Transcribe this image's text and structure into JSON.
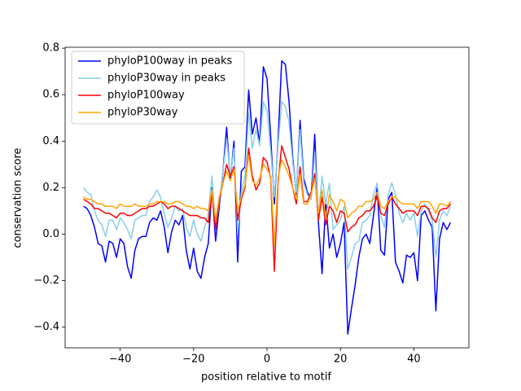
{
  "chart_data": {
    "type": "line",
    "xlabel": "position relative to motif",
    "ylabel": "conservation score",
    "x": [
      -50,
      -49,
      -48,
      -47,
      -46,
      -45,
      -44,
      -43,
      -42,
      -41,
      -40,
      -39,
      -38,
      -37,
      -36,
      -35,
      -34,
      -33,
      -32,
      -31,
      -30,
      -29,
      -28,
      -27,
      -26,
      -25,
      -24,
      -23,
      -22,
      -21,
      -20,
      -19,
      -18,
      -17,
      -16,
      -15,
      -14,
      -13,
      -12,
      -11,
      -10,
      -9,
      -8,
      -7,
      -6,
      -5,
      -4,
      -3,
      -2,
      -1,
      0,
      1,
      2,
      3,
      4,
      5,
      6,
      7,
      8,
      9,
      10,
      11,
      12,
      13,
      14,
      15,
      16,
      17,
      18,
      19,
      20,
      21,
      22,
      23,
      24,
      25,
      26,
      27,
      28,
      29,
      30,
      31,
      32,
      33,
      34,
      35,
      36,
      37,
      38,
      39,
      40,
      41,
      42,
      43,
      44,
      45,
      46,
      47,
      48,
      49,
      50
    ],
    "series": [
      {
        "name": "phyloP100way in peaks",
        "color": "#0000ff",
        "values": [
          0.12,
          0.11,
          0.08,
          0.03,
          -0.04,
          -0.05,
          -0.12,
          -0.03,
          -0.04,
          -0.1,
          -0.02,
          -0.04,
          -0.14,
          -0.19,
          -0.07,
          -0.02,
          -0.01,
          -0.01,
          0.05,
          0.07,
          0.06,
          0.1,
          0.03,
          -0.08,
          0.01,
          0.06,
          0.04,
          0.08,
          -0.07,
          -0.15,
          -0.06,
          -0.16,
          -0.19,
          -0.1,
          -0.04,
          0.2,
          -0.03,
          0.12,
          0.27,
          0.46,
          0.23,
          0.4,
          -0.12,
          0.27,
          0.29,
          0.62,
          0.43,
          0.5,
          0.39,
          0.72,
          0.67,
          0.42,
          0.13,
          0.4,
          0.745,
          0.73,
          0.57,
          0.33,
          0.17,
          0.49,
          0.24,
          0.18,
          0.15,
          0.43,
          0.05,
          -0.17,
          0.14,
          -0.06,
          0.0,
          -0.1,
          -0.04,
          0.05,
          -0.43,
          -0.32,
          -0.22,
          -0.1,
          -0.02,
          0.0,
          -0.04,
          0.08,
          0.2,
          -0.07,
          -0.09,
          0.15,
          0.18,
          -0.12,
          -0.16,
          -0.21,
          -0.09,
          -0.1,
          -0.08,
          -0.2,
          0.08,
          0.1,
          0.06,
          0.03,
          -0.33,
          -0.02,
          0.05,
          0.02,
          0.05
        ]
      },
      {
        "name": "phyloP30way in peaks",
        "color": "#87ceeb",
        "values": [
          0.2,
          0.18,
          0.17,
          0.1,
          0.06,
          0.04,
          -0.01,
          0.06,
          0.06,
          0.02,
          0.07,
          0.05,
          0.02,
          -0.02,
          0.06,
          0.07,
          0.08,
          0.08,
          0.14,
          0.16,
          0.19,
          0.16,
          0.09,
          0.03,
          0.07,
          0.12,
          0.1,
          0.11,
          0.03,
          -0.01,
          0.06,
          0.0,
          -0.03,
          0.03,
          0.09,
          0.25,
          0.02,
          0.14,
          0.27,
          0.41,
          0.25,
          0.37,
          0.0,
          0.18,
          0.25,
          0.52,
          0.37,
          0.45,
          0.38,
          0.57,
          0.53,
          0.36,
          0.16,
          0.38,
          0.57,
          0.55,
          0.48,
          0.31,
          0.18,
          0.45,
          0.22,
          0.17,
          0.15,
          0.35,
          0.08,
          0.25,
          0.13,
          0.22,
          0.02,
          0.04,
          0.06,
          0.12,
          -0.15,
          -0.1,
          -0.04,
          -0.03,
          0.05,
          0.06,
          0.08,
          0.17,
          0.22,
          0.08,
          0.03,
          0.17,
          0.22,
          0.17,
          0.09,
          0.05,
          0.09,
          0.06,
          0.09,
          -0.01,
          0.1,
          0.13,
          0.1,
          0.06,
          -0.1,
          0.06,
          0.1,
          0.08,
          0.12
        ]
      },
      {
        "name": "phyloP100way",
        "color": "#ff0000",
        "values": [
          0.15,
          0.14,
          0.13,
          0.11,
          0.11,
          0.1,
          0.09,
          0.09,
          0.08,
          0.07,
          0.09,
          0.09,
          0.08,
          0.08,
          0.09,
          0.1,
          0.11,
          0.11,
          0.12,
          0.12,
          0.13,
          0.14,
          0.13,
          0.11,
          0.12,
          0.12,
          0.11,
          0.1,
          0.09,
          0.08,
          0.08,
          0.08,
          0.07,
          0.07,
          0.05,
          0.18,
          0.02,
          0.15,
          0.22,
          0.3,
          0.25,
          0.29,
          0.06,
          0.15,
          0.2,
          0.37,
          0.25,
          0.19,
          0.22,
          0.33,
          0.31,
          0.24,
          -0.16,
          0.22,
          0.38,
          0.33,
          0.28,
          0.2,
          0.13,
          0.29,
          0.14,
          0.14,
          0.18,
          0.26,
          0.06,
          0.16,
          0.04,
          0.12,
          0.1,
          0.05,
          0.1,
          0.09,
          0.01,
          0.03,
          0.04,
          0.07,
          0.08,
          0.1,
          0.1,
          0.12,
          0.16,
          0.09,
          0.08,
          0.13,
          0.16,
          0.13,
          0.11,
          0.09,
          0.1,
          0.1,
          0.1,
          0.08,
          0.12,
          0.12,
          0.11,
          0.07,
          0.05,
          0.1,
          0.11,
          0.11,
          0.13
        ]
      },
      {
        "name": "phyloP30way",
        "color": "#ffa500",
        "values": [
          0.16,
          0.15,
          0.15,
          0.14,
          0.13,
          0.13,
          0.12,
          0.12,
          0.12,
          0.11,
          0.13,
          0.12,
          0.12,
          0.12,
          0.13,
          0.12,
          0.12,
          0.12,
          0.13,
          0.13,
          0.14,
          0.14,
          0.14,
          0.13,
          0.13,
          0.14,
          0.14,
          0.13,
          0.12,
          0.12,
          0.11,
          0.12,
          0.11,
          0.11,
          0.1,
          0.19,
          0.06,
          0.16,
          0.22,
          0.27,
          0.23,
          0.28,
          0.1,
          0.16,
          0.21,
          0.34,
          0.23,
          0.21,
          0.24,
          0.3,
          0.28,
          0.25,
          -0.05,
          0.24,
          0.32,
          0.29,
          0.25,
          0.2,
          0.15,
          0.26,
          0.13,
          0.13,
          0.17,
          0.24,
          0.09,
          0.19,
          0.07,
          0.17,
          0.14,
          0.1,
          0.15,
          0.14,
          0.07,
          0.09,
          0.1,
          0.12,
          0.12,
          0.14,
          0.14,
          0.15,
          0.18,
          0.12,
          0.11,
          0.14,
          0.16,
          0.16,
          0.14,
          0.13,
          0.13,
          0.13,
          0.13,
          0.11,
          0.14,
          0.14,
          0.14,
          0.12,
          0.09,
          0.13,
          0.13,
          0.12,
          0.14
        ]
      }
    ],
    "xlim": [
      -55,
      55
    ],
    "xticks": [
      {
        "value": -40,
        "label": "−40"
      },
      {
        "value": -20,
        "label": "−20"
      },
      0,
      20,
      40
    ],
    "ylim": [
      -0.489,
      0.804
    ],
    "yticks": [
      {
        "value": -0.4,
        "label": "−0.4"
      },
      {
        "value": -0.2,
        "label": "−0.2"
      },
      {
        "value": 0,
        "label": "0.0"
      },
      0.2,
      0.4,
      0.6,
      0.8
    ],
    "legend": "upper left"
  }
}
